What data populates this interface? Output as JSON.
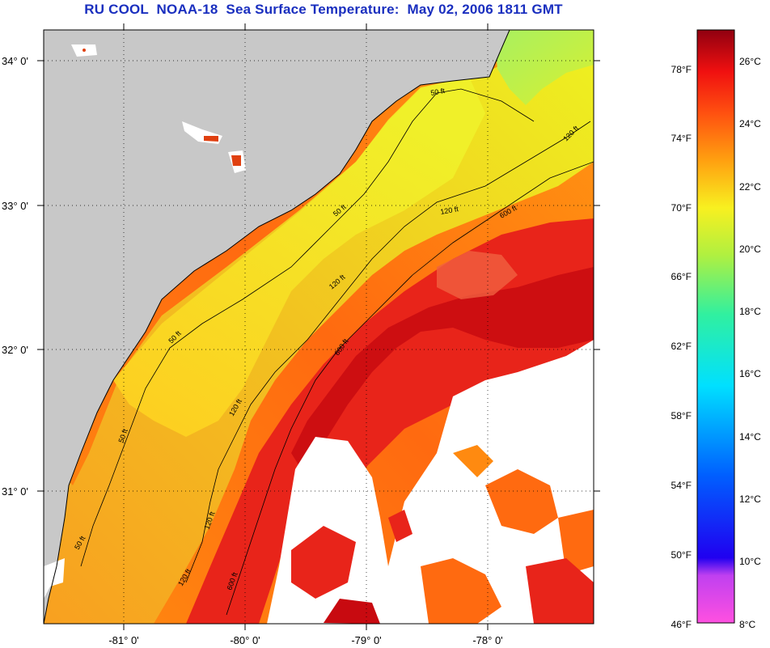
{
  "title": "RU COOL  NOAA-18  Sea Surface Temperature:  May 02, 2006 1811 GMT",
  "axes": {
    "lat_ticks": [
      "34° 0'",
      "33° 0'",
      "32° 0'",
      "31° 0'"
    ],
    "lon_ticks": [
      "-81° 0'",
      "-80° 0'",
      "-79° 0'",
      "-78° 0'"
    ]
  },
  "contours": {
    "labels": [
      "50 ft",
      "50 ft",
      "50 ft",
      "50 ft",
      "50 ft",
      "120 ft",
      "120 ft",
      "120 ft",
      "120 ft",
      "120 ft",
      "120 ft",
      "600 ft",
      "600 ft",
      "600 ft"
    ]
  },
  "colorbar": {
    "fahrenheit_labels": [
      "78°F",
      "74°F",
      "70°F",
      "66°F",
      "62°F",
      "58°F",
      "54°F",
      "50°F",
      "46°F"
    ],
    "celsius_labels": [
      "26°C",
      "24°C",
      "22°C",
      "20°C",
      "18°C",
      "16°C",
      "14°C",
      "12°C",
      "10°C",
      "8°C"
    ]
  },
  "colors": {
    "title": "#1a2fbf",
    "land": "#c8c8c8",
    "cloud": "#ffffff",
    "warm": "#e01a10",
    "hot": "#b8000c",
    "coastal": "#e8f020"
  }
}
